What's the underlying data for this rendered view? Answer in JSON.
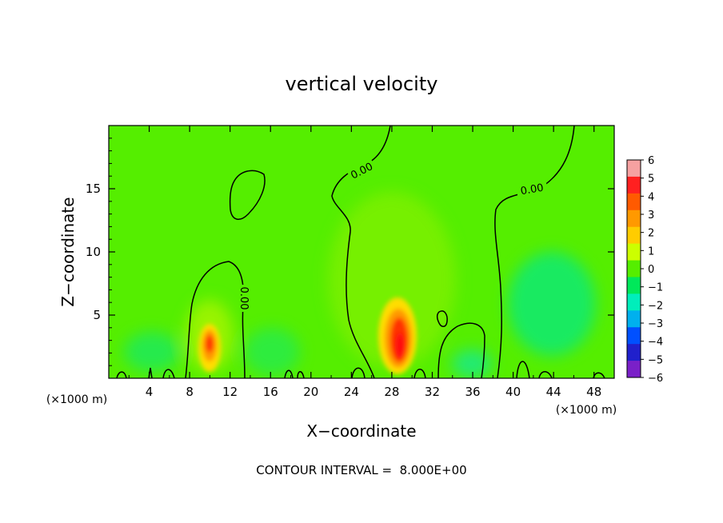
{
  "chart_data": {
    "type": "heatmap",
    "title": "vertical velocity",
    "xlabel": "X−coordinate",
    "ylabel": "Z−coordinate",
    "x_unit_label": "(×1000 m)",
    "x_unit_label_right": "(×1000 m)",
    "xlim": [
      0,
      50
    ],
    "ylim": [
      0,
      20
    ],
    "x_ticks": [
      "4",
      "8",
      "12",
      "16",
      "20",
      "24",
      "28",
      "32",
      "36",
      "40",
      "44",
      "48"
    ],
    "y_ticks": [
      "5",
      "10",
      "15"
    ],
    "colorbar": {
      "labels": [
        "6",
        "5",
        "4",
        "3",
        "2",
        "1",
        "0",
        "−1",
        "−2",
        "−3",
        "−4",
        "−5",
        "−6"
      ],
      "colors": [
        "#f6a1a1",
        "#ff2020",
        "#ff5a00",
        "#ff9900",
        "#ffcc00",
        "#ccff00",
        "#55ee00",
        "#00e85a",
        "#00eebb",
        "#00b0ee",
        "#0050ff",
        "#2020cc",
        "#7a20c8"
      ]
    },
    "contour_labels": [
      "0.00",
      "0.00",
      "0.00"
    ],
    "features": [
      {
        "x": 10,
        "z": 2.8,
        "w": 5.5
      },
      {
        "x": 28.6,
        "z": 2.5,
        "w": 6.0
      },
      {
        "x": 28,
        "z": 9,
        "w": 0.6
      },
      {
        "x": 44,
        "z": 6,
        "w": -1.5
      },
      {
        "x": 4,
        "z": 2,
        "w": -0.7
      }
    ],
    "grid": false,
    "legend_position": "right"
  },
  "footer": "CONTOUR INTERVAL =  8.000E+00"
}
